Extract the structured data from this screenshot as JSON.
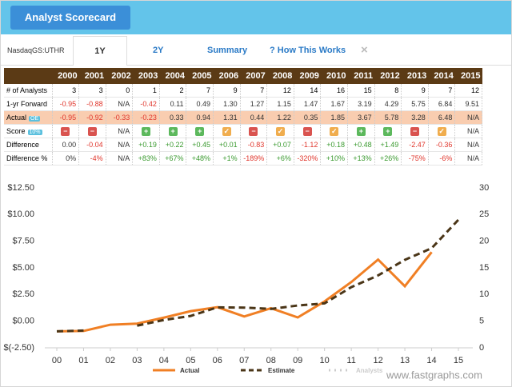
{
  "header": {
    "button": "Analyst Scorecard"
  },
  "tabs": {
    "ticker": "NasdaqGS:UTHR",
    "items": [
      "1Y",
      "2Y",
      "Summary",
      "? How This Works"
    ],
    "close": "×"
  },
  "table": {
    "years": [
      "2000",
      "2001",
      "2002",
      "2003",
      "2004",
      "2005",
      "2006",
      "2007",
      "2008",
      "2009",
      "2010",
      "2011",
      "2012",
      "2013",
      "2014",
      "2015"
    ],
    "rows": [
      {
        "label": "# of Analysts",
        "cells": [
          "3",
          "3",
          "0",
          "1",
          "2",
          "7",
          "9",
          "7",
          "12",
          "14",
          "16",
          "15",
          "8",
          "9",
          "7",
          "12"
        ]
      },
      {
        "label": "1-yr Forward",
        "cells": [
          "-0.95",
          "-0.88",
          "N/A",
          "-0.42",
          "0.11",
          "0.49",
          "1.30",
          "1.27",
          "1.15",
          "1.47",
          "1.67",
          "3.19",
          "4.29",
          "5.75",
          "6.84",
          "9.51"
        ]
      },
      {
        "label": "Actual",
        "badge": "OE",
        "highlight": "#f9cdb0",
        "cells": [
          "-0.95",
          "-0.92",
          "-0.33",
          "-0.23",
          "0.33",
          "0.94",
          "1.31",
          "0.44",
          "1.22",
          "0.35",
          "1.85",
          "3.67",
          "5.78",
          "3.28",
          "6.48",
          "N/A"
        ]
      },
      {
        "label": "Score",
        "badge": "10%",
        "cells": [
          {
            "color": "#d9534f",
            "symbol": "−"
          },
          {
            "color": "#d9534f",
            "symbol": "−"
          },
          "N/A",
          {
            "color": "#5cb85c",
            "symbol": "+"
          },
          {
            "color": "#5cb85c",
            "symbol": "+"
          },
          {
            "color": "#5cb85c",
            "symbol": "+"
          },
          {
            "color": "#f0ad4e",
            "symbol": "✓"
          },
          {
            "color": "#d9534f",
            "symbol": "−"
          },
          {
            "color": "#f0ad4e",
            "symbol": "✓"
          },
          {
            "color": "#d9534f",
            "symbol": "−"
          },
          {
            "color": "#f0ad4e",
            "symbol": "✓"
          },
          {
            "color": "#5cb85c",
            "symbol": "+"
          },
          {
            "color": "#5cb85c",
            "symbol": "+"
          },
          {
            "color": "#d9534f",
            "symbol": "−"
          },
          {
            "color": "#f0ad4e",
            "symbol": "✓"
          },
          "N/A"
        ]
      },
      {
        "label": "Difference",
        "cells": [
          "0.00",
          "-0.04",
          "N/A",
          "+0.19",
          "+0.22",
          "+0.45",
          "+0.01",
          "-0.83",
          "+0.07",
          "-1.12",
          "+0.18",
          "+0.48",
          "+1.49",
          "-2.47",
          "-0.36",
          "N/A"
        ]
      },
      {
        "label": "Difference %",
        "cells": [
          "0%",
          "-4%",
          "N/A",
          "+83%",
          "+67%",
          "+48%",
          "+1%",
          "-189%",
          "+6%",
          "-320%",
          "+10%",
          "+13%",
          "+26%",
          "-75%",
          "-6%",
          "N/A"
        ]
      }
    ]
  },
  "chart_data": {
    "type": "line",
    "categories": [
      "00",
      "01",
      "02",
      "03",
      "04",
      "05",
      "06",
      "07",
      "08",
      "09",
      "10",
      "11",
      "12",
      "13",
      "14",
      "15"
    ],
    "series": [
      {
        "name": "Actual",
        "color": "#f07f24",
        "values": [
          -0.95,
          -0.92,
          -0.33,
          -0.23,
          0.33,
          0.94,
          1.31,
          0.44,
          1.22,
          0.35,
          1.85,
          3.67,
          5.78,
          3.28,
          6.48,
          null
        ]
      },
      {
        "name": "Estimate",
        "color": "#4a3517",
        "dashed": true,
        "values": [
          -0.95,
          -0.88,
          null,
          -0.42,
          0.11,
          0.49,
          1.3,
          1.27,
          1.15,
          1.47,
          1.67,
          3.19,
          4.29,
          5.75,
          6.84,
          9.51
        ]
      },
      {
        "name": "Analysts",
        "color": "#cccccc",
        "hidden": true
      }
    ],
    "ylim": [
      -2.5,
      12.5
    ],
    "yticks": [
      {
        "value": 12.5,
        "label": "$12.50"
      },
      {
        "value": 10,
        "label": "$10.00"
      },
      {
        "value": 7.5,
        "label": "$7.50"
      },
      {
        "value": 5,
        "label": "$5.00"
      },
      {
        "value": 2.5,
        "label": "$2.50"
      },
      {
        "value": 0,
        "label": "$0.00"
      },
      {
        "value": -2.5,
        "label": "$(-2.50)"
      }
    ],
    "y2lim": [
      0,
      30
    ],
    "y2ticks": [
      0,
      5,
      10,
      15,
      20,
      25,
      30
    ],
    "watermark": "www.fastgraphs.com"
  }
}
